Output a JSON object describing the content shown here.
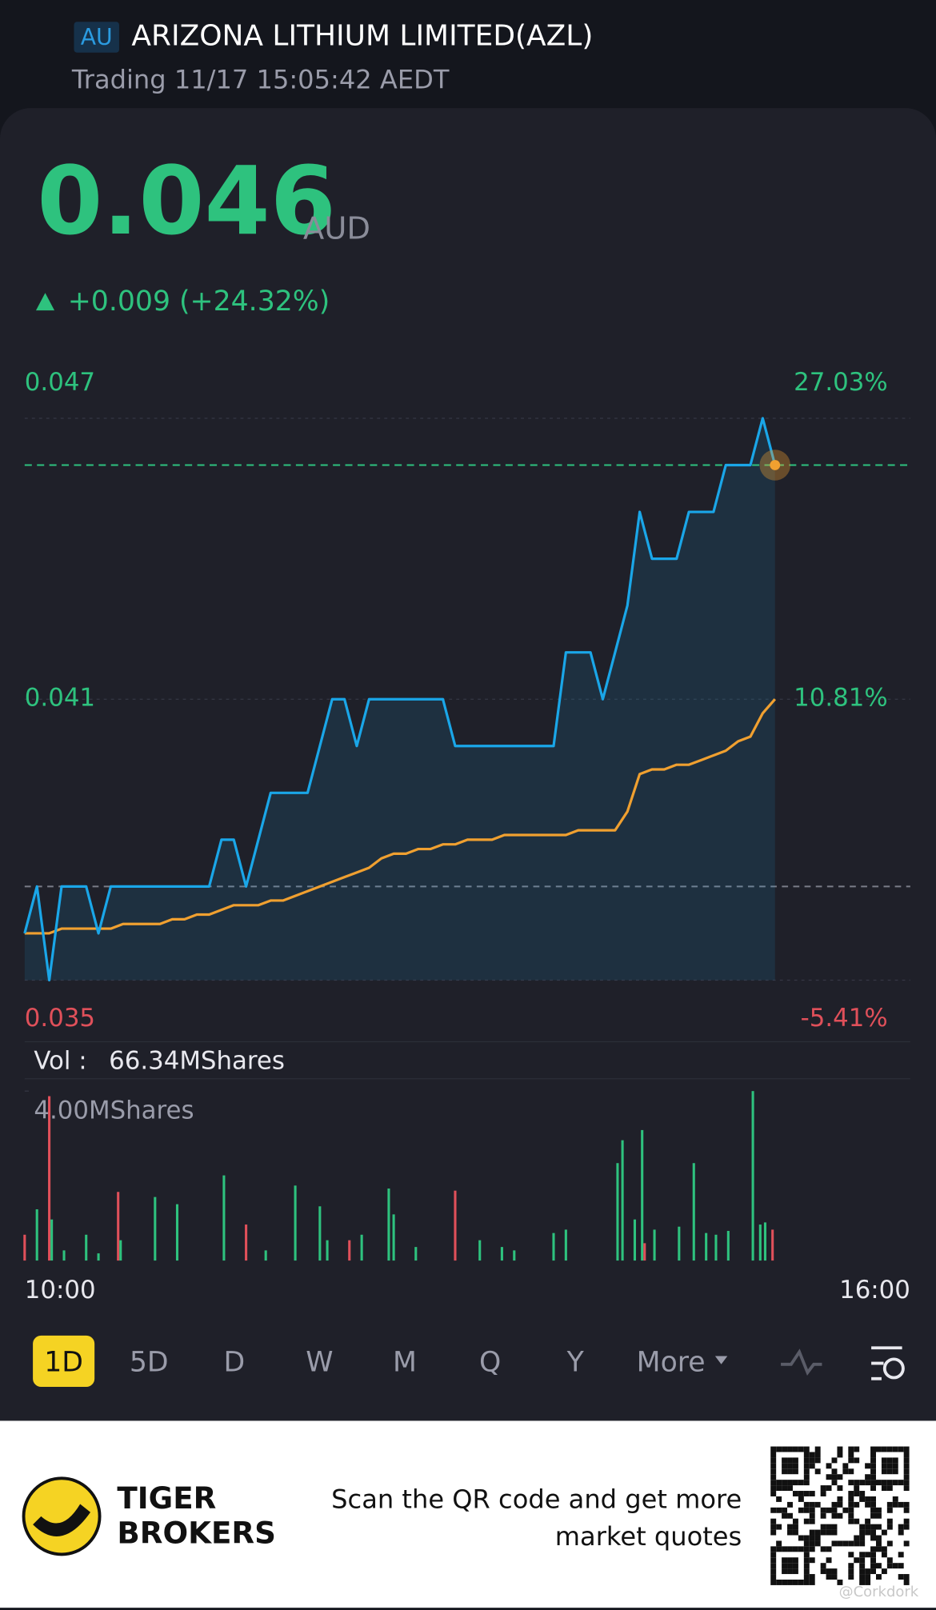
{
  "header": {
    "market": "AU",
    "title": "ARIZONA LITHIUM LIMITED(AZL)",
    "status": "Trading 11/17 15:05:42 AEDT"
  },
  "quote": {
    "price": 0.046,
    "currency": "AUD",
    "change": "+0.009 (+24.32%)"
  },
  "chart_data": {
    "type": "line",
    "x": [
      0,
      5,
      10,
      15,
      20,
      25,
      30,
      35,
      40,
      45,
      50,
      55,
      60,
      65,
      70,
      75,
      80,
      85,
      90,
      95,
      100,
      105,
      110,
      115,
      120,
      125,
      130,
      135,
      140,
      145,
      150,
      155,
      160,
      165,
      170,
      175,
      180,
      185,
      190,
      195,
      200,
      205,
      210,
      215,
      220,
      225,
      230,
      235,
      240,
      245,
      250,
      255,
      260,
      265,
      270,
      275,
      280,
      285,
      290,
      295,
      300,
      305
    ],
    "xlim": [
      0,
      360
    ],
    "xticks": [
      {
        "value": 0,
        "label": "10:00"
      },
      {
        "value": 360,
        "label": "16:00"
      }
    ],
    "ylim": [
      0.035,
      0.047
    ],
    "yticks": [
      0.047,
      0.041,
      0.035
    ],
    "ytick_colors": [
      "#2ec27e",
      "#2ec27e",
      "#e0505a"
    ],
    "pct_labels": [
      "27.03%",
      "10.81%",
      "-5.41%"
    ],
    "reference_line": 0.037,
    "series": [
      {
        "name": "Price",
        "color": "#1aa6e8",
        "values": [
          0.036,
          0.037,
          0.035,
          0.037,
          0.037,
          0.037,
          0.036,
          0.037,
          0.037,
          0.037,
          0.037,
          0.037,
          0.037,
          0.037,
          0.037,
          0.037,
          0.038,
          0.038,
          0.037,
          0.038,
          0.039,
          0.039,
          0.039,
          0.039,
          0.04,
          0.041,
          0.041,
          0.04,
          0.041,
          0.041,
          0.041,
          0.041,
          0.041,
          0.041,
          0.041,
          0.04,
          0.04,
          0.04,
          0.04,
          0.04,
          0.04,
          0.04,
          0.04,
          0.04,
          0.042,
          0.042,
          0.042,
          0.041,
          0.042,
          0.043,
          0.045,
          0.044,
          0.044,
          0.044,
          0.045,
          0.045,
          0.045,
          0.046,
          0.046,
          0.046,
          0.047,
          0.046
        ]
      },
      {
        "name": "Average",
        "color": "#f0a030",
        "values": [
          0.036,
          0.036,
          0.036,
          0.0361,
          0.0361,
          0.0361,
          0.0361,
          0.0361,
          0.0362,
          0.0362,
          0.0362,
          0.0362,
          0.0363,
          0.0363,
          0.0364,
          0.0364,
          0.0365,
          0.0366,
          0.0366,
          0.0366,
          0.0367,
          0.0367,
          0.0368,
          0.0369,
          0.037,
          0.0371,
          0.0372,
          0.0373,
          0.0374,
          0.0376,
          0.0377,
          0.0377,
          0.0378,
          0.0378,
          0.0379,
          0.0379,
          0.038,
          0.038,
          0.038,
          0.0381,
          0.0381,
          0.0381,
          0.0381,
          0.0381,
          0.0381,
          0.0382,
          0.0382,
          0.0382,
          0.0382,
          0.0386,
          0.0394,
          0.0395,
          0.0395,
          0.0396,
          0.0396,
          0.0397,
          0.0398,
          0.0399,
          0.0401,
          0.0402,
          0.0407,
          0.041
        ]
      }
    ]
  },
  "volume": {
    "label": "Vol :",
    "total": "66.34MShares",
    "ylim": [
      0,
      4
    ],
    "yticks": [
      {
        "value": 4,
        "label": "4.00MShares"
      }
    ],
    "up_color": "#2ec27e",
    "down_color": "#e0505a",
    "x": [
      0,
      5,
      10,
      11,
      16,
      25,
      30,
      38,
      39,
      53,
      62,
      81,
      90,
      98,
      110,
      120,
      123,
      132,
      137,
      148,
      150,
      159,
      175,
      185,
      194,
      199,
      215,
      220,
      241,
      243,
      248,
      251,
      252,
      256,
      266,
      272,
      277,
      281,
      286,
      296,
      299,
      301,
      304
    ],
    "values": [
      0.61,
      1.21,
      3.88,
      0.97,
      0.24,
      0.61,
      0.17,
      1.62,
      0.48,
      1.5,
      1.33,
      2.01,
      0.85,
      0.24,
      1.77,
      1.28,
      0.48,
      0.48,
      0.61,
      1.7,
      1.09,
      0.32,
      1.65,
      0.48,
      0.32,
      0.24,
      0.65,
      0.73,
      2.3,
      2.84,
      0.97,
      3.08,
      0.41,
      0.73,
      0.8,
      2.3,
      0.65,
      0.61,
      0.7,
      4.0,
      0.85,
      0.9,
      0.73
    ],
    "down": [
      true,
      false,
      true,
      false,
      false,
      false,
      false,
      true,
      false,
      false,
      false,
      false,
      true,
      false,
      false,
      false,
      false,
      true,
      false,
      false,
      false,
      false,
      true,
      false,
      false,
      false,
      false,
      false,
      false,
      false,
      false,
      false,
      true,
      false,
      false,
      false,
      false,
      false,
      false,
      false,
      false,
      false,
      true
    ]
  },
  "tabs": {
    "items": [
      "1D",
      "5D",
      "D",
      "W",
      "M",
      "Q",
      "Y",
      "More"
    ],
    "active": 0
  },
  "footer": {
    "brand_line1": "TIGER",
    "brand_line2": "BROKERS",
    "cta_line1": "Scan the QR code and get more",
    "cta_line2": "market quotes",
    "watermark": "@Corkdork"
  }
}
